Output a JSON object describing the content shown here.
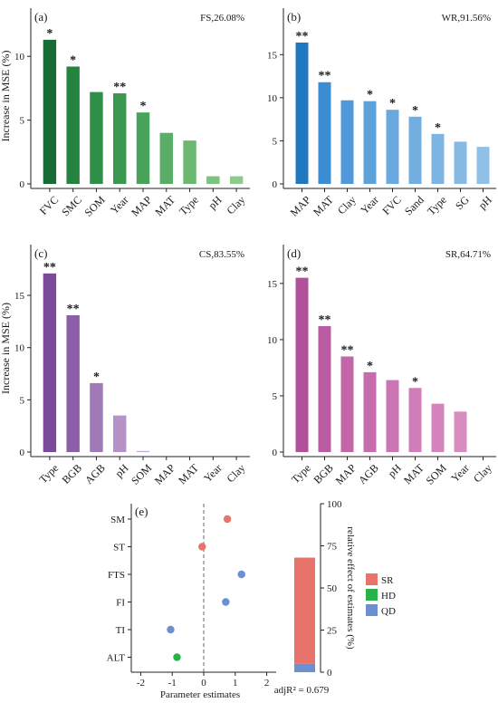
{
  "colors": {
    "fs": [
      "#176b35",
      "#24843f",
      "#2f8f49",
      "#3a9850",
      "#49a25a",
      "#5aad66",
      "#6ab872",
      "#7ec27f",
      "#8ccb8a"
    ],
    "wr": [
      "#1f78c0",
      "#3b8cd0",
      "#4f99d8",
      "#5ea2dc",
      "#6aa9df",
      "#73aee0",
      "#7db4e2",
      "#86bae4",
      "#8fc0e6"
    ],
    "cs": [
      "#7c4a9c",
      "#8c5eaa",
      "#a07ab8",
      "#b592c8",
      "#c4a8d4",
      "#d3c0de",
      "#ddd0e6",
      "#e5dcec",
      "#ece6f1"
    ],
    "sr": [
      "#b2509a",
      "#bb5ca2",
      "#c265a9",
      "#c76daf",
      "#cc75b4",
      "#d07db9",
      "#d485bd",
      "#d88dc1",
      "#dc95c5"
    ],
    "SR": "#e8736a",
    "HD": "#27b24a",
    "QD": "#6a8fd2"
  },
  "chart_data": [
    {
      "type": "bar",
      "panel": "(a)",
      "annotation": "FS,26.08%",
      "ylabel": "Increase in MSE (%)",
      "ylim": [
        0,
        12.5
      ],
      "yticks": [
        0,
        5,
        10
      ],
      "categories": [
        "FVC",
        "SMC",
        "SOM",
        "Year",
        "MAP",
        "MAT",
        "Type",
        "pH",
        "Clay"
      ],
      "values": [
        11.3,
        9.2,
        7.2,
        7.1,
        5.6,
        4.0,
        3.4,
        0.6,
        0.6
      ],
      "significance": [
        "*",
        "*",
        "",
        "**",
        "*",
        "",
        "",
        "",
        ""
      ]
    },
    {
      "type": "bar",
      "panel": "(b)",
      "annotation": "WR,91.56%",
      "ylabel": "",
      "ylim": [
        0,
        18.5
      ],
      "yticks": [
        0,
        5,
        10,
        15
      ],
      "categories": [
        "MAP",
        "MAT",
        "Clay",
        "Year",
        "FVC",
        "Sand",
        "Type",
        "SG",
        "pH"
      ],
      "values": [
        16.4,
        11.8,
        9.7,
        9.6,
        8.6,
        7.8,
        5.8,
        4.9,
        4.3
      ],
      "significance": [
        "**",
        "**",
        "",
        "*",
        "*",
        "*",
        "*",
        "",
        ""
      ]
    },
    {
      "type": "bar",
      "panel": "(c)",
      "annotation": "CS,83.55%",
      "ylabel": "Increase in MSE (%)",
      "ylim": [
        0,
        18.3
      ],
      "yticks": [
        0,
        5,
        10,
        15
      ],
      "categories": [
        "Type",
        "BGB",
        "AGB",
        "pH",
        "SOM",
        "MAP",
        "MAT",
        "Year",
        "Clay"
      ],
      "values": [
        17.1,
        13.1,
        6.6,
        3.5,
        0.1,
        0,
        0,
        0,
        0
      ],
      "significance": [
        "**",
        "**",
        "*",
        "",
        "",
        "",
        "",
        "",
        ""
      ]
    },
    {
      "type": "bar",
      "panel": "(d)",
      "annotation": "SR,64.71%",
      "ylabel": "",
      "ylim": [
        0,
        17
      ],
      "yticks": [
        0,
        5,
        10,
        15
      ],
      "categories": [
        "Type",
        "BGB",
        "MAP",
        "AGB",
        "pH",
        "MAT",
        "SOM",
        "Year",
        "Clay"
      ],
      "values": [
        15.5,
        11.2,
        8.5,
        7.1,
        6.4,
        5.7,
        4.3,
        3.6,
        0
      ],
      "significance": [
        "**",
        "**",
        "**",
        "*",
        "",
        "*",
        "",
        "",
        ""
      ]
    },
    {
      "type": "scatter",
      "panel": "(e)",
      "xlabel": "Parameter estimates",
      "xlim": [
        -2.3,
        2.3
      ],
      "xticks": [
        -2,
        -1,
        0,
        1,
        2
      ],
      "categories": [
        "SM",
        "ST",
        "FTS",
        "FI",
        "TI",
        "ALT"
      ],
      "x": [
        0.75,
        -0.05,
        1.2,
        0.7,
        -1.05,
        -0.85
      ],
      "groups": [
        "SR",
        "SR",
        "QD",
        "QD",
        "QD",
        "HD"
      ]
    },
    {
      "type": "bar",
      "subtype": "stacked",
      "ylabel": "relative effect of estimates (%)",
      "ylim": [
        0,
        100
      ],
      "yticks": [
        0,
        25,
        50,
        75,
        100
      ],
      "footer": "adjR² = 0.679",
      "series": [
        {
          "name": "QD",
          "values": [
            5
          ]
        },
        {
          "name": "HD",
          "values": [
            0
          ]
        },
        {
          "name": "SR",
          "values": [
            63
          ]
        }
      ],
      "legend": [
        "SR",
        "HD",
        "QD"
      ],
      "legend_position": "right"
    }
  ]
}
